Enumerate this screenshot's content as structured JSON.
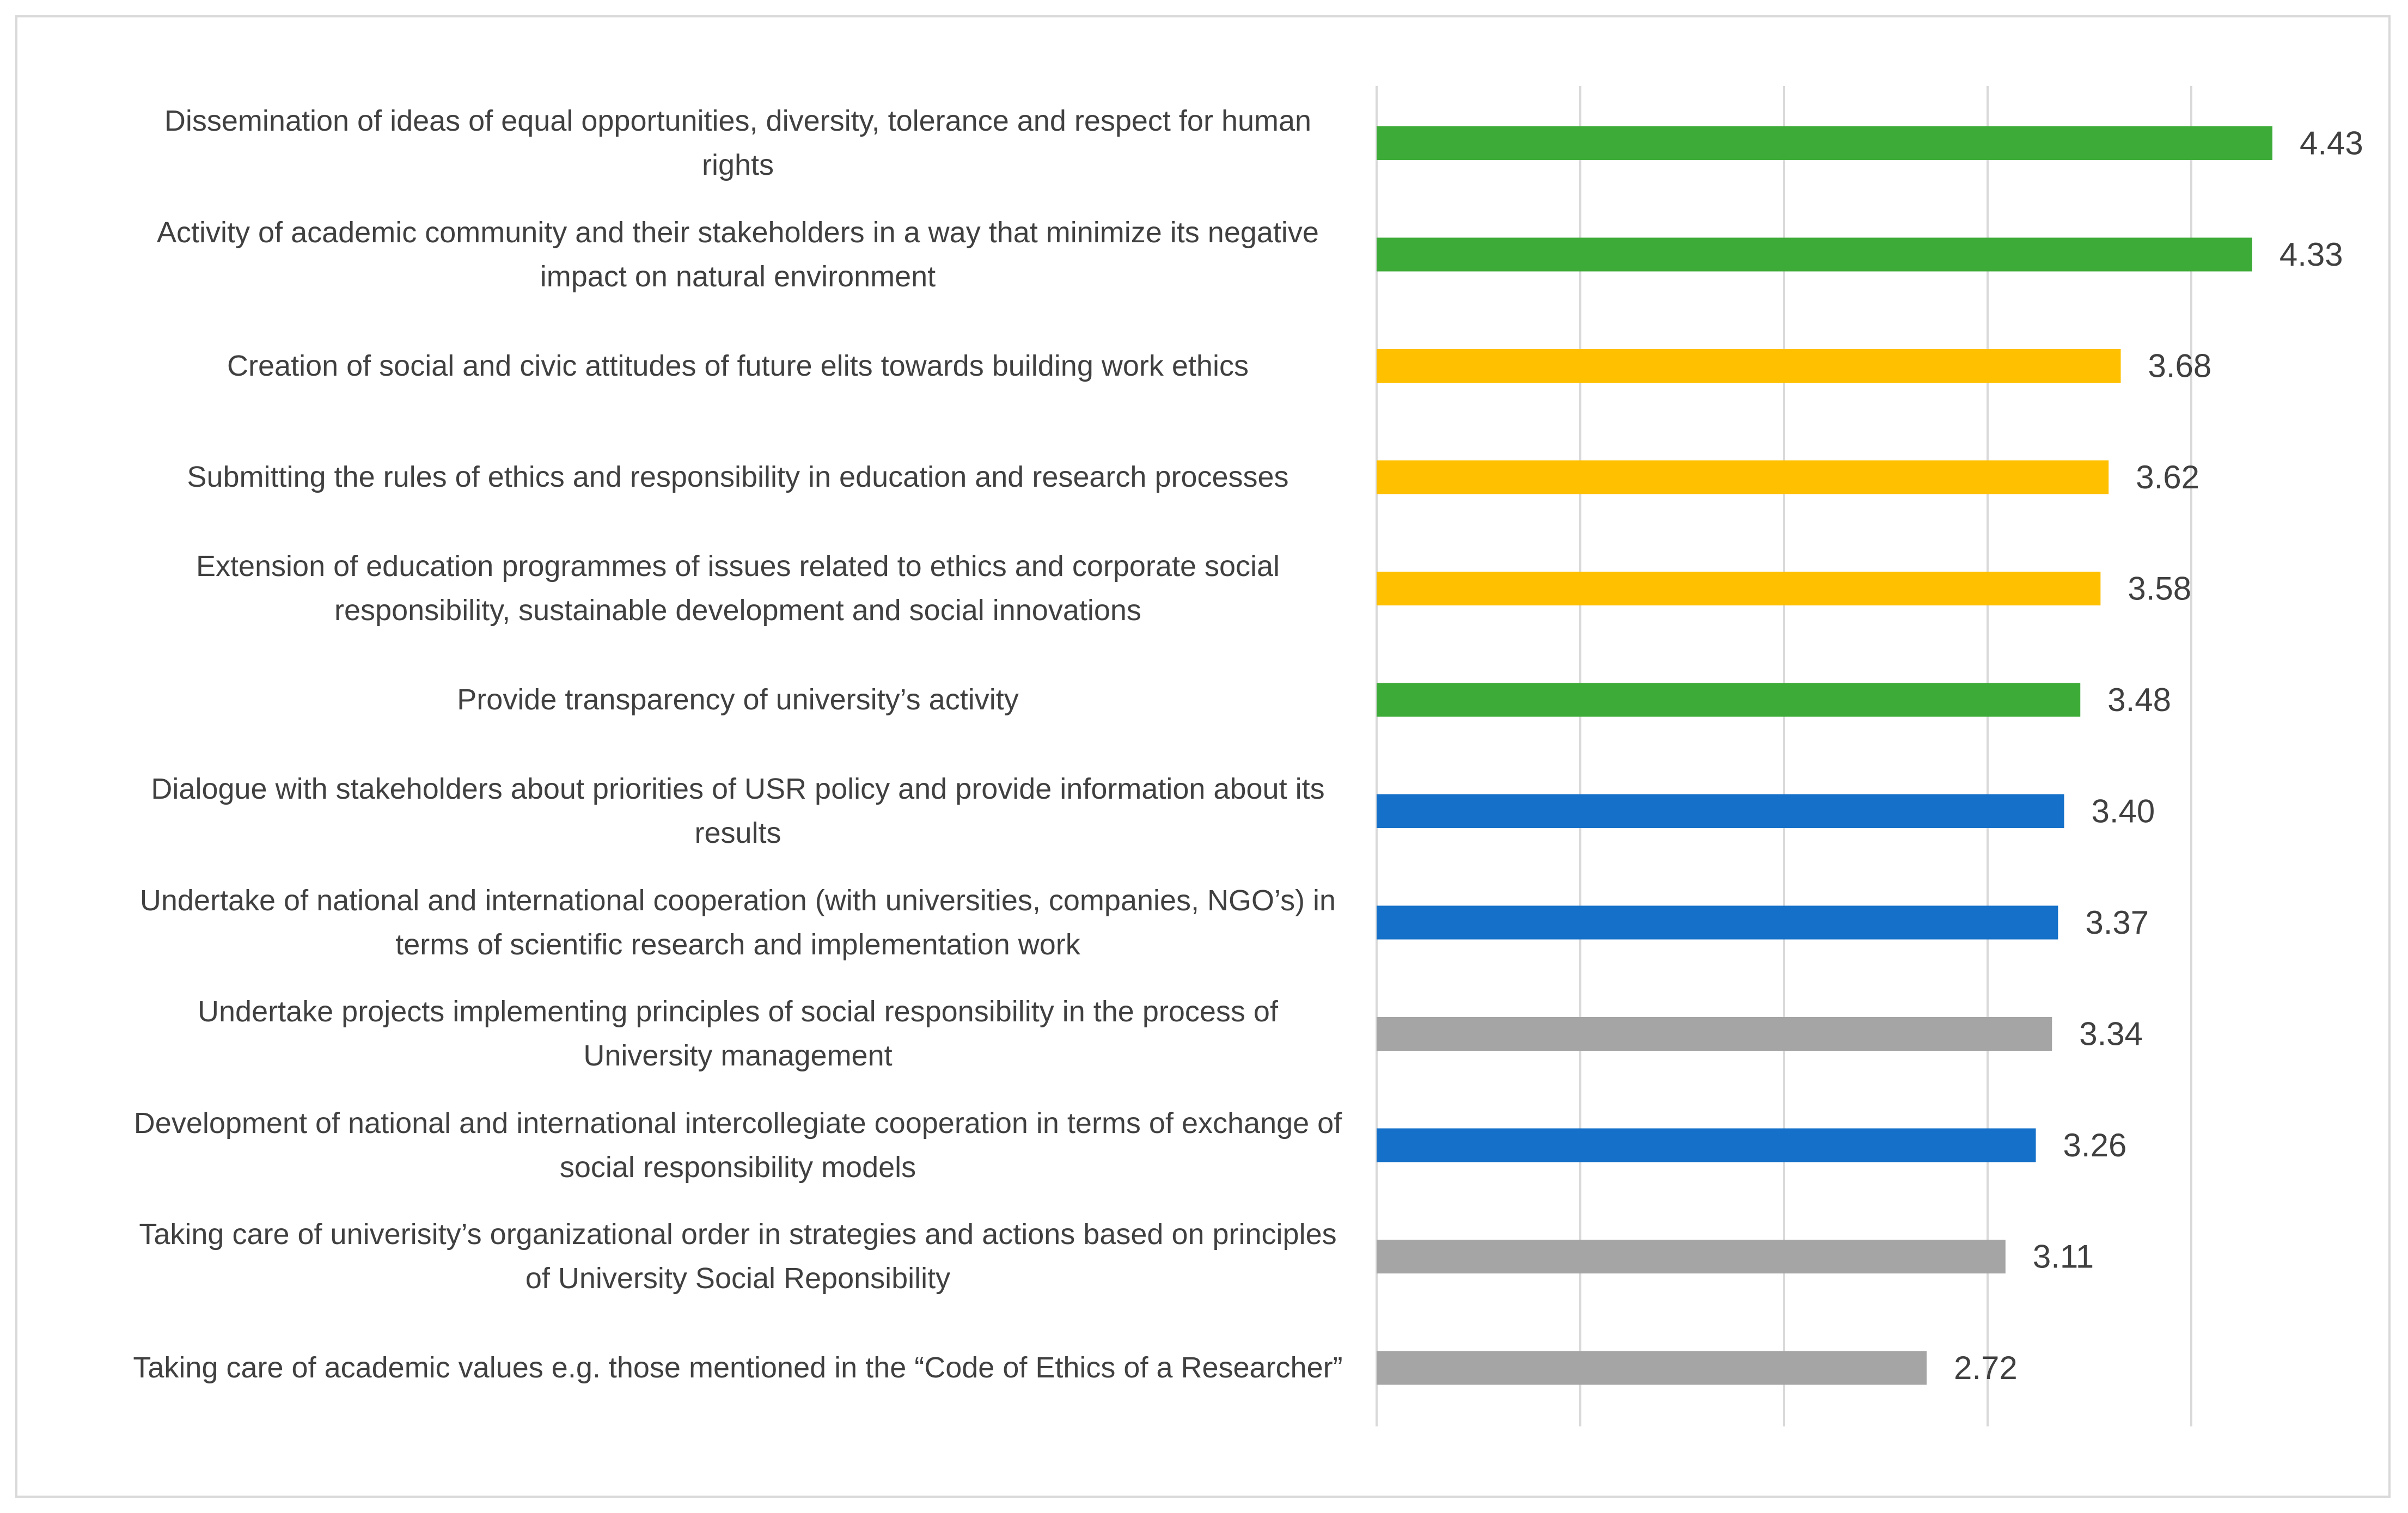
{
  "chart_data": {
    "type": "bar",
    "orientation": "horizontal",
    "title": "",
    "xlabel": "",
    "ylabel": "",
    "xlim": [
      0,
      4.43
    ],
    "grid": true,
    "legend": "none",
    "categories": [
      "Dissemination of ideas of equal opportunities, diversity, tolerance and respect for human rights",
      "Activity of academic community and their stakeholders in a way that minimize its negative impact on natural environment",
      "Creation of social and civic attitudes of future elits towards building work ethics",
      "Submitting the rules of ethics and responsibility in education and research processes",
      "Extension of education programmes of issues related to ethics and corporate social responsibility, sustainable development and social innovations",
      "Provide transparency of university’s activity",
      "Dialogue with stakeholders about priorities of USR policy and provide information about its results",
      "Undertake of national and international cooperation (with universities, companies, NGO’s) in terms of scientific research and implementation work",
      "Undertake projects implementing principles of social responsibility in the process of University management",
      "Development of national and international intercollegiate cooperation in terms of exchange of social responsibility models",
      "Taking care of univerisity’s organizational order in strategies and actions based on principles of University Social Reponsibility",
      "Taking care of academic values e.g. those mentioned in the “Code of Ethics of a Researcher”"
    ],
    "values": [
      4.43,
      4.33,
      3.68,
      3.62,
      3.58,
      3.48,
      3.4,
      3.37,
      3.34,
      3.26,
      3.11,
      2.72
    ],
    "value_labels": [
      "4.43",
      "4.33",
      "3.68",
      "3.62",
      "3.58",
      "3.48",
      "3.40",
      "3.37",
      "3.34",
      "3.26",
      "3.11",
      "2.72"
    ],
    "colors": [
      "#3dab38",
      "#3dab38",
      "#ffc000",
      "#ffc000",
      "#ffc000",
      "#3dab38",
      "#1470c8",
      "#1470c8",
      "#a5a5a5",
      "#1470c8",
      "#a5a5a5",
      "#a5a5a5"
    ]
  }
}
